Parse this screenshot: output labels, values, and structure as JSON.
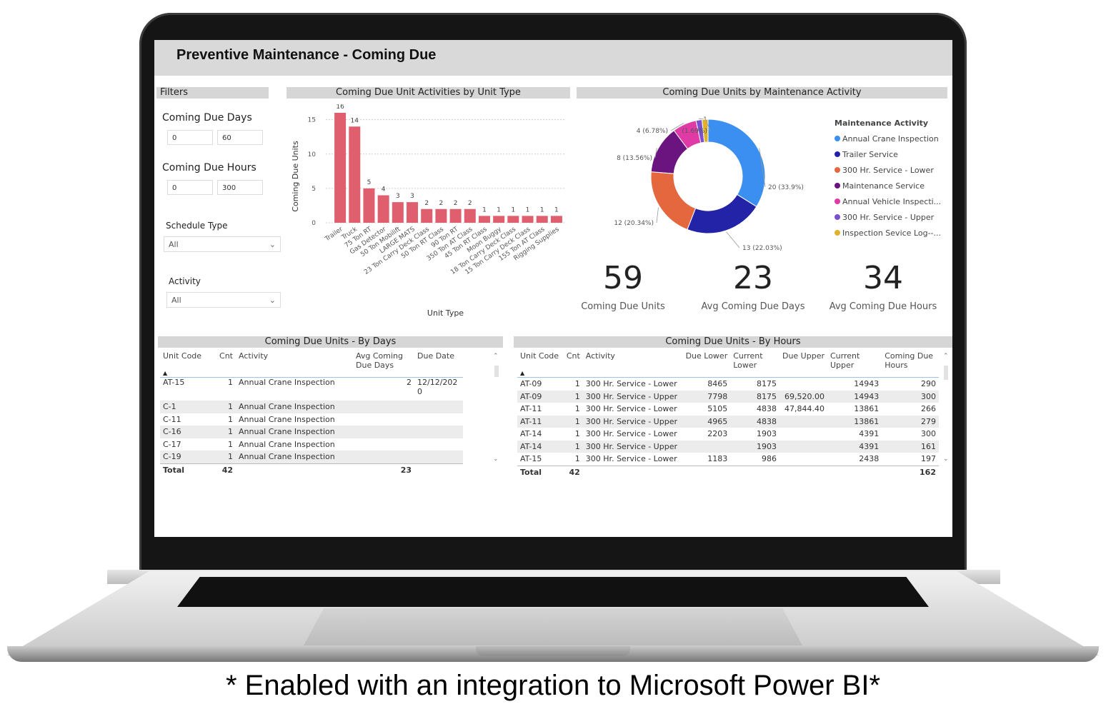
{
  "dashboard": {
    "title": "Preventive Maintenance - Coming Due"
  },
  "filters": {
    "panel_title": "Filters",
    "coming_due_days": {
      "label": "Coming Due Days",
      "min": "0",
      "max": "60"
    },
    "coming_due_hours": {
      "label": "Coming Due Hours",
      "min": "0",
      "max": "300"
    },
    "schedule_type": {
      "label": "Schedule Type",
      "value": "All"
    },
    "activity": {
      "label": "Activity",
      "value": "All"
    }
  },
  "bar_panel": {
    "title": "Coming Due Unit Activities by Unit Type"
  },
  "donut_panel": {
    "title": "Coming Due Units by Maintenance Activity"
  },
  "kpis": [
    {
      "value": "59",
      "label": "Coming Due Units"
    },
    {
      "value": "23",
      "label": "Avg Coming Due Days"
    },
    {
      "value": "34",
      "label": "Avg Coming Due Hours"
    }
  ],
  "chart_data": [
    {
      "type": "bar",
      "title": "Coming Due Unit Activities by Unit Type",
      "xlabel": "Unit Type",
      "ylabel": "Coming Due Units",
      "ylim": [
        0,
        16
      ],
      "yticks": [
        0,
        5,
        10,
        15
      ],
      "grid": true,
      "color": "#e05f6e",
      "categories": [
        "Trailer",
        "Truck",
        "75 Ton RT",
        "Gas Detector",
        "50 Ton Mobilift",
        "LARGE MATS",
        "23 Ton Carry Deck Class",
        "18 Ton Carry Deck Class",
        "50 Ton RT Class",
        "90 Ton RT",
        "15 Ton Carry Deck Class",
        "155 Ton AT Class",
        "350 Ton AT Class",
        "45 Ton RT Class",
        "Moon Buggy",
        "Rigging Supplies"
      ],
      "label_order": [
        "Trailer",
        "Truck",
        "75 Ton RT",
        "Gas Detector",
        "50 Ton Mobilift",
        "LARGE MATS",
        "23 Ton Carry Deck Class",
        "50 Ton RT Class",
        "90 Ton RT",
        "350 Ton AT Class",
        "45 Ton RT Class",
        "Moon Buggy",
        "18 Ton Carry Deck Class",
        "15 Ton Carry Deck Class",
        "155 Ton AT Class",
        "Rigging Supplies"
      ],
      "values": [
        16,
        14,
        5,
        4,
        3,
        3,
        2,
        2,
        2,
        2,
        1,
        1,
        1,
        1,
        1,
        1
      ]
    },
    {
      "type": "pie",
      "title": "Coming Due Units by Maintenance Activity",
      "legend_title": "Maintenance Activity",
      "legend_position": "right",
      "slices": [
        {
          "name": "Annual Crane Inspection",
          "value": 20,
          "label": "20 (33.9%)",
          "color": "#3a8ff0"
        },
        {
          "name": "Trailer Service",
          "value": 13,
          "label": "13 (22.03%)",
          "color": "#2323a8"
        },
        {
          "name": "300 Hr. Service - Lower",
          "value": 12,
          "label": "12 (20.34%)",
          "color": "#e5673e"
        },
        {
          "name": "Maintenance Service",
          "value": 8,
          "label": "8 (13.56%)",
          "color": "#6b137e"
        },
        {
          "name": "Annual Vehicle Inspecti...",
          "value": 4,
          "label": "4 (6.78%)",
          "color": "#df3aa5"
        },
        {
          "name": "300 Hr. Service - Upper",
          "value": 1,
          "label": "1",
          "color": "#7a4fd0"
        },
        {
          "name": "Inspection Sevice Log--...",
          "value": 1,
          "label": "(1.69%)",
          "color": "#e0b22c"
        }
      ]
    }
  ],
  "table_days": {
    "title": "Coming Due Units - By Days",
    "columns": [
      "Unit Code",
      "Cnt",
      "Activity",
      "Avg Coming Due Days",
      "Due Date"
    ],
    "col_unit": "Unit Code",
    "col_cnt": "Cnt",
    "col_activity": "Activity",
    "col_avg_1": "Avg Coming",
    "col_avg_2": "Due Days",
    "col_due": "Due Date",
    "rows": [
      {
        "unit": "AT-15",
        "cnt": "1",
        "activity": "Annual Crane Inspection",
        "avg": "2",
        "due1": "12/12/202",
        "due2": "0"
      },
      {
        "unit": "C-1",
        "cnt": "1",
        "activity": "Annual Crane Inspection",
        "avg": "",
        "due1": "",
        "due2": ""
      },
      {
        "unit": "C-11",
        "cnt": "1",
        "activity": "Annual Crane Inspection",
        "avg": "",
        "due1": "",
        "due2": ""
      },
      {
        "unit": "C-16",
        "cnt": "1",
        "activity": "Annual Crane Inspection",
        "avg": "",
        "due1": "",
        "due2": ""
      },
      {
        "unit": "C-17",
        "cnt": "1",
        "activity": "Annual Crane Inspection",
        "avg": "",
        "due1": "",
        "due2": ""
      },
      {
        "unit": "C-19",
        "cnt": "1",
        "activity": "Annual Crane Inspection",
        "avg": "",
        "due1": "",
        "due2": ""
      }
    ],
    "total": {
      "label": "Total",
      "cnt": "42",
      "avg": "23"
    }
  },
  "table_hours": {
    "title": "Coming Due Units - By Hours",
    "col_unit": "Unit Code",
    "col_cnt": "Cnt",
    "col_activity": "Activity",
    "col_due_lower": "Due Lower",
    "col_cur_lower_1": "Current",
    "col_cur_lower_2": "Lower",
    "col_due_upper": "Due Upper",
    "col_cur_upper_1": "Current",
    "col_cur_upper_2": "Upper",
    "col_hours_1": "Coming Due",
    "col_hours_2": "Hours",
    "rows": [
      {
        "unit": "AT-09",
        "cnt": "1",
        "activity": "300 Hr. Service - Lower",
        "due_lower": "8465",
        "cur_lower": "8175",
        "due_upper": "",
        "cur_upper": "14943",
        "hours": "290"
      },
      {
        "unit": "AT-09",
        "cnt": "1",
        "activity": "300 Hr. Service - Upper",
        "due_lower": "7798",
        "cur_lower": "8175",
        "due_upper": "69,520.00",
        "cur_upper": "14943",
        "hours": "300"
      },
      {
        "unit": "AT-11",
        "cnt": "1",
        "activity": "300 Hr. Service - Lower",
        "due_lower": "5105",
        "cur_lower": "4838",
        "due_upper": "47,844.40",
        "cur_upper": "13861",
        "hours": "266"
      },
      {
        "unit": "AT-11",
        "cnt": "1",
        "activity": "300 Hr. Service - Upper",
        "due_lower": "4965",
        "cur_lower": "4838",
        "due_upper": "",
        "cur_upper": "13861",
        "hours": "279"
      },
      {
        "unit": "AT-14",
        "cnt": "1",
        "activity": "300 Hr. Service - Lower",
        "due_lower": "2203",
        "cur_lower": "1903",
        "due_upper": "",
        "cur_upper": "4391",
        "hours": "300"
      },
      {
        "unit": "AT-14",
        "cnt": "1",
        "activity": "300 Hr. Service - Upper",
        "due_lower": "",
        "cur_lower": "1903",
        "due_upper": "",
        "cur_upper": "4391",
        "hours": "161"
      },
      {
        "unit": "AT-15",
        "cnt": "1",
        "activity": "300 Hr. Service - Lower",
        "due_lower": "1183",
        "cur_lower": "986",
        "due_upper": "",
        "cur_upper": "2438",
        "hours": "197"
      }
    ],
    "total": {
      "label": "Total",
      "cnt": "42",
      "hours": "162"
    }
  },
  "caption": "* Enabled with an integration to Microsoft Power BI*"
}
